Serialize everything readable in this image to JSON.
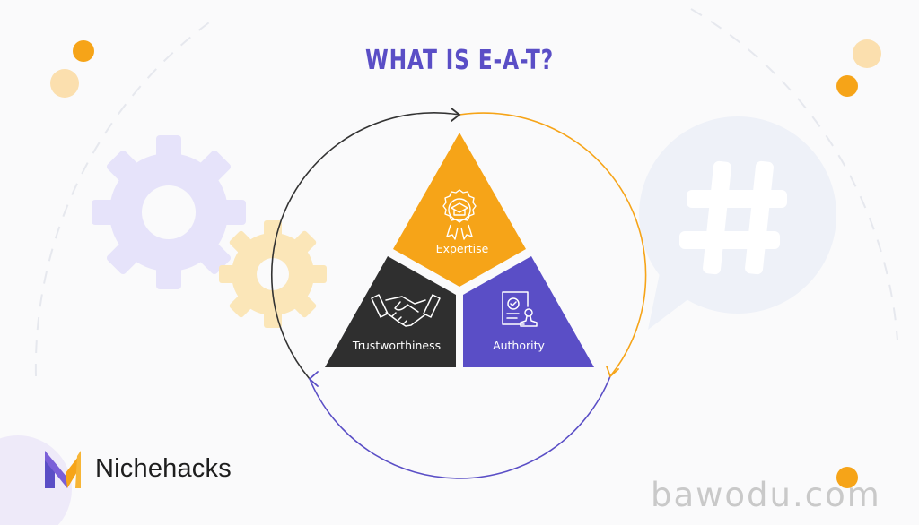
{
  "title": "WHAT IS E-A-T?",
  "segments": {
    "expertise": {
      "label": "Expertise",
      "icon": "award-ribbon-icon",
      "color": "#f6a418"
    },
    "trustworthiness": {
      "label": "Trustworthiness",
      "icon": "handshake-icon",
      "color": "#2f2f2f"
    },
    "authority": {
      "label": "Authority",
      "icon": "certificate-icon",
      "color": "#5a4ec6"
    }
  },
  "cycle_colors": {
    "dark": "#333333",
    "orange": "#f6a418",
    "purple": "#5a4ec6"
  },
  "brand": {
    "name": "Nichehacks",
    "logo_icon": "nichehacks-logo-icon"
  },
  "watermark": "bawodu.com"
}
